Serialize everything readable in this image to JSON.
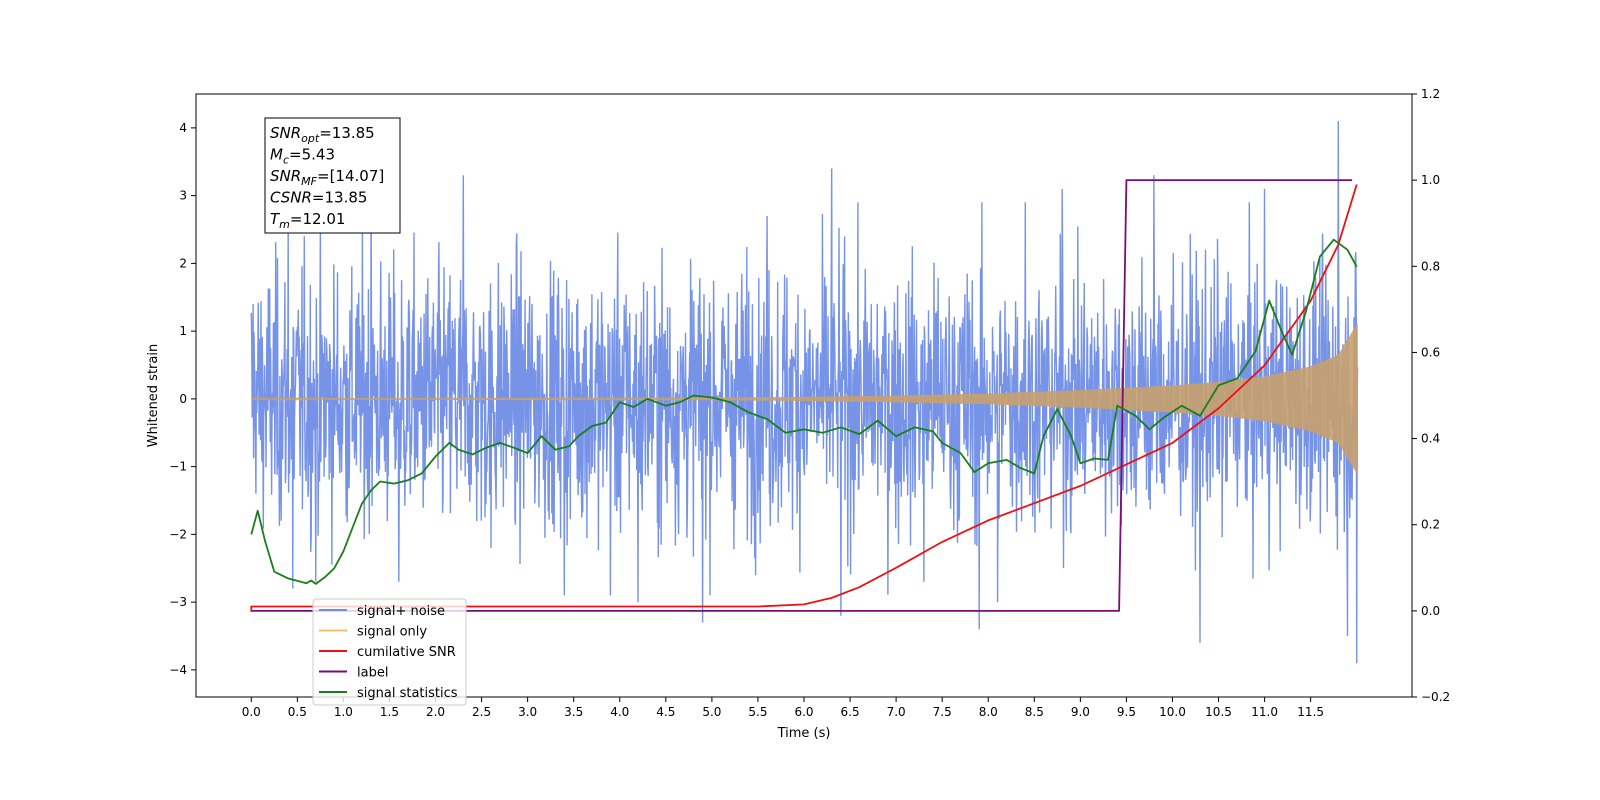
{
  "chart_data": {
    "type": "line",
    "xlabel": "Time (s)",
    "ylabel_left": "Whitened strain",
    "xlim": [
      -0.6,
      12.6
    ],
    "ylim_left": [
      -4.4,
      4.5
    ],
    "ylim_right": [
      -0.2,
      1.2
    ],
    "x_ticks": [
      0.0,
      0.5,
      1.0,
      1.5,
      2.0,
      2.5,
      3.0,
      3.5,
      4.0,
      4.5,
      5.0,
      5.5,
      6.0,
      6.5,
      7.0,
      7.5,
      8.0,
      8.5,
      9.0,
      9.5,
      10.0,
      10.5,
      11.0,
      11.5
    ],
    "x_tick_labels": [
      "0.0",
      "0.5",
      "1.0",
      "1.5",
      "2.0",
      "2.5",
      "3.0",
      "3.5",
      "4.0",
      "4.5",
      "5.0",
      "5.5",
      "6.0",
      "6.5",
      "7.0",
      "7.5",
      "8.0",
      "8.5",
      "9.0",
      "9.5",
      "10.0",
      "10.5",
      "11.0",
      "11.5"
    ],
    "y_ticks_left": [
      -4,
      -3,
      -2,
      -1,
      0,
      1,
      2,
      3,
      4
    ],
    "y_tick_labels_left": [
      "−4",
      "−3",
      "−2",
      "−1",
      "0",
      "1",
      "2",
      "3",
      "4"
    ],
    "y_ticks_right": [
      -0.2,
      0.0,
      0.2,
      0.4,
      0.6,
      0.8,
      1.0,
      1.2
    ],
    "y_tick_labels_right": [
      "−0.2",
      "0.0",
      "0.2",
      "0.4",
      "0.6",
      "0.8",
      "1.0",
      "1.2"
    ],
    "annotation": {
      "lines": [
        {
          "name": "SNR",
          "sub": "opt",
          "value": "=13.85"
        },
        {
          "name": "M",
          "sub": "c",
          "value": "=5.43"
        },
        {
          "name": "SNR",
          "sub": "MF",
          "value": "=[14.07]"
        },
        {
          "name": "CSNR",
          "sub": "",
          "value": "=13.85"
        },
        {
          "name": "T",
          "sub": "m",
          "value": "=12.01"
        }
      ]
    },
    "legend": {
      "placement": "lower-left",
      "entries": [
        {
          "label": "signal+ noise",
          "color": "#6f8de6"
        },
        {
          "label": "signal only",
          "color": "#f5c06e"
        },
        {
          "label": "cumilative SNR",
          "color": "#ee1111"
        },
        {
          "label": "label",
          "color": "#7a0d7a"
        },
        {
          "label": "signal statistics",
          "color": "#1a7f1a"
        }
      ]
    },
    "series": [
      {
        "name": "signal+ noise",
        "axis": "left",
        "color": "#6f8de6",
        "style": "noise-band",
        "t_start": 0.0,
        "t_end": 12.01,
        "amplitude_sigma": 1.0,
        "spikes": [
          [
            0.02,
            1.4
          ],
          [
            0.05,
            -1.4
          ],
          [
            0.4,
            2.7
          ],
          [
            0.45,
            -2.8
          ],
          [
            0.7,
            -2.7
          ],
          [
            1.3,
            3.2
          ],
          [
            1.6,
            -2.7
          ],
          [
            2.3,
            3.3
          ],
          [
            2.6,
            -2.2
          ],
          [
            3.4,
            -2.9
          ],
          [
            3.9,
            -2.9
          ],
          [
            4.2,
            -3.0
          ],
          [
            4.9,
            -3.3
          ],
          [
            5.6,
            2.7
          ],
          [
            6.3,
            3.4
          ],
          [
            6.4,
            -3.2
          ],
          [
            7.3,
            -2.7
          ],
          [
            7.9,
            -3.4
          ],
          [
            8.1,
            -3.0
          ],
          [
            8.4,
            2.9
          ],
          [
            8.8,
            3.1
          ],
          [
            9.8,
            3.3
          ],
          [
            10.3,
            -3.6
          ],
          [
            11.0,
            3.1
          ],
          [
            11.8,
            4.1
          ],
          [
            11.9,
            -3.5
          ],
          [
            12.0,
            -3.9
          ]
        ]
      },
      {
        "name": "signal only",
        "axis": "left",
        "color": "#c8a06e",
        "style": "chirp-envelope",
        "t_start": 0.0,
        "t_end": 12.01,
        "envelope": [
          [
            0.0,
            0.01
          ],
          [
            5.0,
            0.02
          ],
          [
            6.0,
            0.03
          ],
          [
            7.0,
            0.05
          ],
          [
            8.0,
            0.08
          ],
          [
            9.0,
            0.13
          ],
          [
            10.0,
            0.2
          ],
          [
            10.5,
            0.25
          ],
          [
            11.0,
            0.33
          ],
          [
            11.5,
            0.48
          ],
          [
            11.8,
            0.65
          ],
          [
            12.0,
            1.1
          ]
        ]
      },
      {
        "name": "cumilative SNR",
        "axis": "right",
        "color": "#ee1111",
        "points": [
          [
            0.0,
            -0.002
          ],
          [
            0.0,
            0.01
          ],
          [
            5.5,
            0.01
          ],
          [
            6.0,
            0.015
          ],
          [
            6.3,
            0.03
          ],
          [
            6.6,
            0.055
          ],
          [
            7.0,
            0.1
          ],
          [
            7.5,
            0.16
          ],
          [
            8.0,
            0.21
          ],
          [
            8.5,
            0.25
          ],
          [
            9.0,
            0.29
          ],
          [
            9.5,
            0.34
          ],
          [
            10.0,
            0.39
          ],
          [
            10.5,
            0.47
          ],
          [
            11.0,
            0.57
          ],
          [
            11.5,
            0.72
          ],
          [
            11.8,
            0.85
          ],
          [
            12.0,
            0.99
          ]
        ]
      },
      {
        "name": "label",
        "axis": "right",
        "color": "#7a0d7a",
        "points": [
          [
            0.0,
            0.0
          ],
          [
            9.42,
            0.0
          ],
          [
            9.5,
            1.0
          ],
          [
            11.95,
            1.0
          ]
        ]
      },
      {
        "name": "signal statistics",
        "axis": "left",
        "color": "#1a7f1a",
        "points": [
          [
            0.0,
            -2.0
          ],
          [
            0.07,
            -1.65
          ],
          [
            0.15,
            -2.1
          ],
          [
            0.25,
            -2.55
          ],
          [
            0.4,
            -2.65
          ],
          [
            0.6,
            -2.72
          ],
          [
            0.65,
            -2.68
          ],
          [
            0.7,
            -2.73
          ],
          [
            0.8,
            -2.63
          ],
          [
            0.9,
            -2.5
          ],
          [
            1.0,
            -2.25
          ],
          [
            1.1,
            -1.9
          ],
          [
            1.2,
            -1.55
          ],
          [
            1.3,
            -1.35
          ],
          [
            1.4,
            -1.22
          ],
          [
            1.55,
            -1.25
          ],
          [
            1.7,
            -1.2
          ],
          [
            1.85,
            -1.1
          ],
          [
            2.0,
            -0.85
          ],
          [
            2.15,
            -0.65
          ],
          [
            2.25,
            -0.75
          ],
          [
            2.4,
            -0.82
          ],
          [
            2.55,
            -0.72
          ],
          [
            2.7,
            -0.65
          ],
          [
            2.85,
            -0.72
          ],
          [
            3.0,
            -0.8
          ],
          [
            3.15,
            -0.55
          ],
          [
            3.3,
            -0.75
          ],
          [
            3.45,
            -0.7
          ],
          [
            3.55,
            -0.55
          ],
          [
            3.7,
            -0.4
          ],
          [
            3.85,
            -0.35
          ],
          [
            4.0,
            -0.05
          ],
          [
            4.15,
            -0.12
          ],
          [
            4.3,
            -0.0
          ],
          [
            4.5,
            -0.1
          ],
          [
            4.65,
            -0.05
          ],
          [
            4.8,
            0.05
          ],
          [
            5.0,
            0.02
          ],
          [
            5.2,
            -0.05
          ],
          [
            5.4,
            -0.2
          ],
          [
            5.6,
            -0.3
          ],
          [
            5.8,
            -0.5
          ],
          [
            6.0,
            -0.45
          ],
          [
            6.2,
            -0.5
          ],
          [
            6.4,
            -0.42
          ],
          [
            6.6,
            -0.52
          ],
          [
            6.8,
            -0.32
          ],
          [
            7.0,
            -0.55
          ],
          [
            7.2,
            -0.42
          ],
          [
            7.4,
            -0.48
          ],
          [
            7.5,
            -0.65
          ],
          [
            7.7,
            -0.8
          ],
          [
            7.85,
            -1.08
          ],
          [
            8.0,
            -0.95
          ],
          [
            8.2,
            -0.9
          ],
          [
            8.35,
            -1.02
          ],
          [
            8.5,
            -1.1
          ],
          [
            8.6,
            -0.55
          ],
          [
            8.75,
            -0.15
          ],
          [
            8.9,
            -0.55
          ],
          [
            9.0,
            -0.95
          ],
          [
            9.15,
            -0.88
          ],
          [
            9.3,
            -0.9
          ],
          [
            9.4,
            -0.1
          ],
          [
            9.6,
            -0.25
          ],
          [
            9.75,
            -0.45
          ],
          [
            9.9,
            -0.28
          ],
          [
            10.1,
            -0.1
          ],
          [
            10.3,
            -0.25
          ],
          [
            10.5,
            0.2
          ],
          [
            10.7,
            0.3
          ],
          [
            10.9,
            0.7
          ],
          [
            11.05,
            1.45
          ],
          [
            11.2,
            0.95
          ],
          [
            11.3,
            0.65
          ],
          [
            11.45,
            1.3
          ],
          [
            11.6,
            2.1
          ],
          [
            11.75,
            2.35
          ],
          [
            11.9,
            2.2
          ],
          [
            12.0,
            1.95
          ]
        ]
      }
    ]
  }
}
